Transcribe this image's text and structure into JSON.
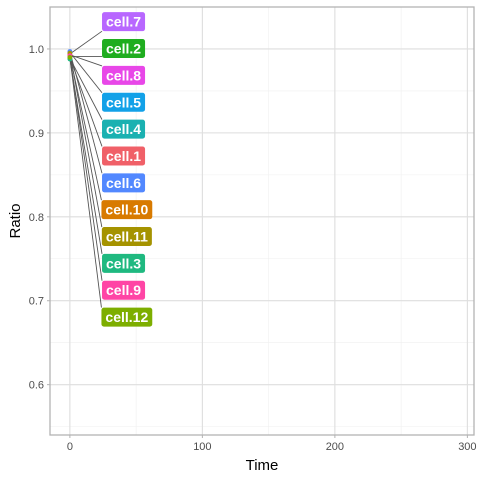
{
  "chart_data": {
    "type": "scatter",
    "title": "",
    "xlabel": "Time",
    "ylabel": "Ratio",
    "xlim": [
      -15,
      305
    ],
    "ylim": [
      0.54,
      1.05
    ],
    "x_ticks": [
      0,
      100,
      200,
      300
    ],
    "y_ticks": [
      0.6,
      0.7,
      0.8,
      0.9,
      1.0
    ],
    "x_tick_labels": [
      "0",
      "100",
      "200",
      "300"
    ],
    "y_tick_labels": [
      "0.6",
      "0.7",
      "0.8",
      "0.9",
      "1.0"
    ],
    "grid": true,
    "legend": "none",
    "series": [
      {
        "name": "cell.7",
        "color": "#B867FF",
        "x": [
          0
        ],
        "y": [
          0.994
        ],
        "label_pos": [
          40.5,
          1.0325
        ]
      },
      {
        "name": "cell.2",
        "color": "#1FAD1F",
        "x": [
          0
        ],
        "y": [
          0.991
        ],
        "label_pos": [
          40.5,
          1.0005
        ]
      },
      {
        "name": "cell.8",
        "color": "#E847E8",
        "x": [
          0
        ],
        "y": [
          0.993
        ],
        "label_pos": [
          40.5,
          0.9685
        ]
      },
      {
        "name": "cell.5",
        "color": "#12A1E8",
        "x": [
          0
        ],
        "y": [
          0.996
        ],
        "label_pos": [
          40.5,
          0.9365
        ]
      },
      {
        "name": "cell.4",
        "color": "#1AB1B1",
        "x": [
          0
        ],
        "y": [
          0.989
        ],
        "label_pos": [
          40.5,
          0.9045
        ]
      },
      {
        "name": "cell.1",
        "color": "#F06068",
        "x": [
          0
        ],
        "y": [
          0.99
        ],
        "label_pos": [
          40.5,
          0.8725
        ]
      },
      {
        "name": "cell.6",
        "color": "#5288FF",
        "x": [
          0
        ],
        "y": [
          0.997
        ],
        "label_pos": [
          40.5,
          0.8405
        ]
      },
      {
        "name": "cell.10",
        "color": "#D87A00",
        "x": [
          0
        ],
        "y": [
          0.992
        ],
        "label_pos": [
          43.0,
          0.8085
        ]
      },
      {
        "name": "cell.11",
        "color": "#A59300",
        "x": [
          0
        ],
        "y": [
          0.995
        ],
        "label_pos": [
          43.0,
          0.7765
        ]
      },
      {
        "name": "cell.3",
        "color": "#1FB980",
        "x": [
          0
        ],
        "y": [
          0.988
        ],
        "label_pos": [
          40.5,
          0.7445
        ]
      },
      {
        "name": "cell.9",
        "color": "#FF45A5",
        "x": [
          0
        ],
        "y": [
          0.992
        ],
        "label_pos": [
          40.5,
          0.7125
        ]
      },
      {
        "name": "cell.12",
        "color": "#7DAE00",
        "x": [
          0
        ],
        "y": [
          0.99
        ],
        "label_pos": [
          43.0,
          0.6805
        ]
      }
    ],
    "colors": {
      "panel_border": "#b3b3b3",
      "grid_major": "#dedede",
      "grid_minor": "#efefef",
      "connector": "#555555"
    }
  }
}
